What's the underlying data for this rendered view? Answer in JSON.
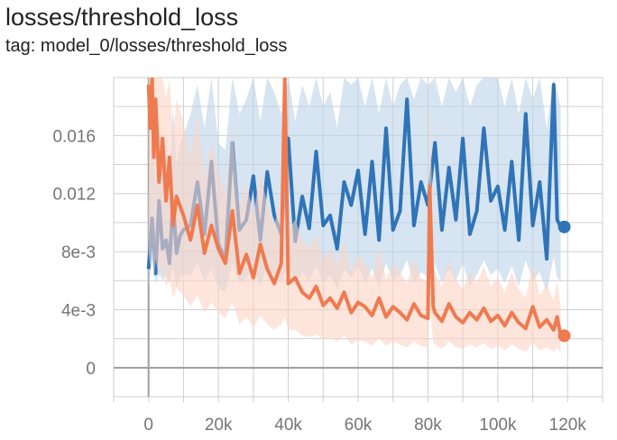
{
  "header": {
    "title": "losses/threshold_loss",
    "tag": "tag: model_0/losses/threshold_loss"
  },
  "colors": {
    "series_blue": "#2f74b8",
    "series_orange": "#f07a4f",
    "band_blue": "#bcd3ea",
    "band_orange": "#fbd3c4",
    "grid": "#cfcfcf",
    "axis": "#9e9e9e"
  },
  "chart_data": {
    "type": "line",
    "title": "",
    "xlabel": "",
    "ylabel": "",
    "xlim": [
      -10000,
      130000
    ],
    "ylim": [
      -0.002,
      0.02
    ],
    "x_ticks": [
      0,
      20000,
      40000,
      60000,
      80000,
      100000,
      120000
    ],
    "x_tick_labels": [
      "0",
      "20k",
      "40k",
      "60k",
      "80k",
      "100k",
      "120k"
    ],
    "y_ticks": [
      0,
      0.004,
      0.008,
      0.012,
      0.016
    ],
    "y_tick_labels": [
      "0",
      "4e-3",
      "8e-3",
      "0.012",
      "0.016"
    ],
    "grid": true,
    "legend": "none",
    "series": [
      {
        "color": "#2f74b8",
        "x": [
          0,
          1000,
          2000,
          3000,
          4000,
          5000,
          6000,
          7000,
          8000,
          9000,
          10000,
          12000,
          14000,
          16000,
          18000,
          20000,
          22000,
          24000,
          26000,
          28000,
          30000,
          32000,
          34000,
          36000,
          38000,
          40000,
          42000,
          44000,
          46000,
          48000,
          50000,
          52000,
          54000,
          56000,
          58000,
          60000,
          62000,
          64000,
          66000,
          68000,
          70000,
          72000,
          74000,
          76000,
          78000,
          80000,
          82000,
          84000,
          86000,
          88000,
          90000,
          92000,
          94000,
          96000,
          98000,
          100000,
          102000,
          104000,
          106000,
          108000,
          110000,
          112000,
          114000,
          116000,
          117000,
          118000
        ],
        "y": [
          0.0068,
          0.0103,
          0.0065,
          0.0115,
          0.0082,
          0.0088,
          0.0072,
          0.0115,
          0.0079,
          0.0091,
          0.0095,
          0.0098,
          0.0128,
          0.0092,
          0.0142,
          0.0085,
          0.0075,
          0.0155,
          0.0095,
          0.0102,
          0.0132,
          0.0088,
          0.0135,
          0.0105,
          0.0092,
          0.0158,
          0.0087,
          0.0118,
          0.0096,
          0.0149,
          0.0098,
          0.0105,
          0.0082,
          0.0128,
          0.0112,
          0.0136,
          0.0092,
          0.0142,
          0.0088,
          0.0165,
          0.0095,
          0.0108,
          0.0185,
          0.0098,
          0.0128,
          0.0112,
          0.0155,
          0.0095,
          0.0138,
          0.0102,
          0.0158,
          0.0092,
          0.0108,
          0.0165,
          0.0115,
          0.0125,
          0.0095,
          0.0142,
          0.0088,
          0.0175,
          0.0098,
          0.0128,
          0.0075,
          0.0195,
          0.0102,
          0.0097
        ],
        "lower": [
          0.0055,
          0.0075,
          0.0058,
          0.0065,
          0.006,
          0.0064,
          0.0058,
          0.007,
          0.0055,
          0.0062,
          0.0065,
          0.0063,
          0.0072,
          0.006,
          0.0068,
          0.0055,
          0.0052,
          0.0072,
          0.0058,
          0.0062,
          0.0068,
          0.0056,
          0.007,
          0.0064,
          0.0058,
          0.0072,
          0.0056,
          0.0066,
          0.006,
          0.007,
          0.0058,
          0.0064,
          0.0054,
          0.0068,
          0.0062,
          0.007,
          0.0058,
          0.0068,
          0.0056,
          0.0072,
          0.006,
          0.0064,
          0.0074,
          0.0058,
          0.0066,
          0.0062,
          0.0072,
          0.0058,
          0.0068,
          0.006,
          0.0072,
          0.0056,
          0.0064,
          0.0074,
          0.0064,
          0.0068,
          0.0058,
          0.007,
          0.0056,
          0.0074,
          0.006,
          0.0066,
          0.0052,
          0.0076,
          0.0062,
          0.006
        ],
        "upper": [
          0.012,
          0.0165,
          0.0125,
          0.017,
          0.0145,
          0.0155,
          0.013,
          0.018,
          0.014,
          0.0155,
          0.016,
          0.0175,
          0.0195,
          0.0165,
          0.02,
          0.0155,
          0.015,
          0.02,
          0.0175,
          0.0185,
          0.02,
          0.017,
          0.02,
          0.019,
          0.0175,
          0.02,
          0.017,
          0.0195,
          0.018,
          0.02,
          0.018,
          0.019,
          0.0165,
          0.02,
          0.0195,
          0.02,
          0.018,
          0.02,
          0.0175,
          0.02,
          0.018,
          0.0195,
          0.02,
          0.0185,
          0.02,
          0.0195,
          0.02,
          0.018,
          0.02,
          0.019,
          0.02,
          0.018,
          0.0195,
          0.02,
          0.02,
          0.02,
          0.018,
          0.02,
          0.0175,
          0.02,
          0.0185,
          0.02,
          0.0165,
          0.02,
          0.019,
          0.018
        ]
      },
      {
        "color": "#f07a4f",
        "x": [
          0,
          500,
          1000,
          1500,
          2000,
          3000,
          4000,
          5000,
          6000,
          7000,
          8000,
          10000,
          12000,
          14000,
          16000,
          18000,
          20000,
          22000,
          24000,
          26000,
          28000,
          30000,
          32000,
          34000,
          36000,
          38000,
          39000,
          40000,
          42000,
          44000,
          46000,
          48000,
          50000,
          52000,
          54000,
          56000,
          58000,
          60000,
          62000,
          64000,
          66000,
          68000,
          70000,
          72000,
          74000,
          76000,
          78000,
          80000,
          80500,
          81500,
          82000,
          84000,
          86000,
          88000,
          90000,
          92000,
          94000,
          96000,
          98000,
          100000,
          102000,
          104000,
          106000,
          108000,
          110000,
          112000,
          114000,
          116000,
          117000,
          118000
        ],
        "y": [
          0.0195,
          0.0165,
          0.02,
          0.0145,
          0.0185,
          0.0128,
          0.0158,
          0.0115,
          0.0145,
          0.0098,
          0.0118,
          0.0105,
          0.0088,
          0.0112,
          0.0079,
          0.0098,
          0.0082,
          0.0072,
          0.0108,
          0.0065,
          0.0078,
          0.0062,
          0.0085,
          0.0068,
          0.0058,
          0.0072,
          0.02,
          0.0058,
          0.0062,
          0.0052,
          0.0048,
          0.0056,
          0.0043,
          0.0048,
          0.0041,
          0.0052,
          0.0038,
          0.0045,
          0.0042,
          0.0036,
          0.0048,
          0.0035,
          0.0042,
          0.0038,
          0.0033,
          0.0044,
          0.0036,
          0.0034,
          0.0125,
          0.0042,
          0.0038,
          0.0032,
          0.0044,
          0.0035,
          0.0031,
          0.0038,
          0.0033,
          0.0041,
          0.0032,
          0.0036,
          0.0029,
          0.0038,
          0.0031,
          0.0027,
          0.0042,
          0.0028,
          0.0033,
          0.0026,
          0.0035,
          0.0022
        ],
        "lower": [
          0.008,
          0.007,
          0.0085,
          0.006,
          0.0075,
          0.0062,
          0.007,
          0.0055,
          0.0062,
          0.0048,
          0.0055,
          0.005,
          0.0042,
          0.005,
          0.0038,
          0.0045,
          0.0038,
          0.0034,
          0.0045,
          0.003,
          0.0035,
          0.0028,
          0.0036,
          0.003,
          0.0026,
          0.003,
          0.0035,
          0.0026,
          0.0026,
          0.0022,
          0.0021,
          0.0023,
          0.0019,
          0.0021,
          0.0018,
          0.0022,
          0.0016,
          0.0019,
          0.0018,
          0.0015,
          0.002,
          0.0015,
          0.0018,
          0.0016,
          0.0014,
          0.0018,
          0.0015,
          0.0014,
          0.0045,
          0.0017,
          0.0016,
          0.0013,
          0.0018,
          0.0014,
          0.0013,
          0.0016,
          0.0014,
          0.0017,
          0.0013,
          0.0015,
          0.0012,
          0.0016,
          0.0013,
          0.0011,
          0.0017,
          0.0012,
          0.0014,
          0.0011,
          0.0014,
          0.001
        ],
        "upper": [
          0.02,
          0.02,
          0.02,
          0.02,
          0.02,
          0.02,
          0.02,
          0.0185,
          0.02,
          0.016,
          0.0185,
          0.017,
          0.0145,
          0.0175,
          0.013,
          0.0155,
          0.0135,
          0.012,
          0.0165,
          0.011,
          0.0128,
          0.0105,
          0.0135,
          0.0112,
          0.0098,
          0.0118,
          0.02,
          0.0095,
          0.0102,
          0.0088,
          0.0082,
          0.0092,
          0.0074,
          0.0082,
          0.0071,
          0.0088,
          0.0066,
          0.0078,
          0.0072,
          0.0062,
          0.0082,
          0.0061,
          0.0072,
          0.0066,
          0.0058,
          0.0075,
          0.0062,
          0.0059,
          0.02,
          0.0072,
          0.0066,
          0.0056,
          0.0075,
          0.0061,
          0.0054,
          0.0066,
          0.0058,
          0.007,
          0.0056,
          0.0062,
          0.0052,
          0.0066,
          0.0054,
          0.0048,
          0.0072,
          0.005,
          0.0058,
          0.0046,
          0.006,
          0.0042
        ]
      }
    ]
  }
}
